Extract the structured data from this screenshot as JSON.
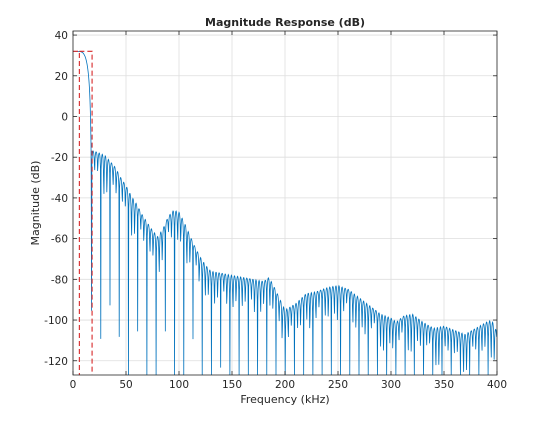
{
  "chart_data": {
    "type": "line",
    "title": "Magnitude Response (dB)",
    "xlabel": "Frequency (kHz)",
    "ylabel": "Magnitude (dB)",
    "xlim": [
      0,
      400
    ],
    "ylim": [
      -127,
      42
    ],
    "xticks": [
      0,
      50,
      100,
      150,
      200,
      250,
      300,
      350,
      400
    ],
    "yticks": [
      -120,
      -100,
      -80,
      -60,
      -40,
      -20,
      0,
      20,
      40
    ],
    "grid": true,
    "line_color": "#0072bd",
    "mask_color": "#d62728",
    "series": [
      {
        "type": "line",
        "passband_level_db": 32,
        "passband_edge_khz": 17,
        "stopband_envelope": [
          [
            17.5,
            -17
          ],
          [
            20,
            -17
          ],
          [
            25,
            -18
          ],
          [
            30,
            -19
          ],
          [
            35,
            -22
          ],
          [
            40,
            -25
          ],
          [
            45,
            -30
          ],
          [
            50,
            -34
          ],
          [
            55,
            -39
          ],
          [
            60,
            -43
          ],
          [
            65,
            -48
          ],
          [
            70,
            -52
          ],
          [
            75,
            -56
          ],
          [
            80,
            -59
          ],
          [
            85,
            -55
          ],
          [
            90,
            -49
          ],
          [
            95,
            -46
          ],
          [
            100,
            -47
          ],
          [
            105,
            -52
          ],
          [
            110,
            -58
          ],
          [
            115,
            -64
          ],
          [
            120,
            -69
          ],
          [
            125,
            -73
          ],
          [
            130,
            -76
          ],
          [
            140,
            -77
          ],
          [
            150,
            -78
          ],
          [
            160,
            -79
          ],
          [
            170,
            -80
          ],
          [
            180,
            -81
          ],
          [
            185,
            -79
          ],
          [
            190,
            -84
          ],
          [
            200,
            -95
          ],
          [
            210,
            -92
          ],
          [
            220,
            -87
          ],
          [
            230,
            -86
          ],
          [
            240,
            -84
          ],
          [
            250,
            -83
          ],
          [
            260,
            -85
          ],
          [
            270,
            -89
          ],
          [
            280,
            -93
          ],
          [
            290,
            -97
          ],
          [
            300,
            -99
          ],
          [
            305,
            -101
          ],
          [
            312,
            -98
          ],
          [
            320,
            -97
          ],
          [
            330,
            -101
          ],
          [
            340,
            -104
          ],
          [
            350,
            -103
          ],
          [
            360,
            -105
          ],
          [
            370,
            -107
          ],
          [
            380,
            -104
          ],
          [
            390,
            -101
          ],
          [
            395,
            -100
          ],
          [
            400,
            -106
          ]
        ],
        "null_spacing_khz": 2.9,
        "null_floor_db": -127
      }
    ],
    "mask": {
      "passband": {
        "start_khz": 0,
        "end_khz": 6,
        "level_db": 32
      },
      "transition": {
        "start_khz": 6,
        "end_khz": 18,
        "level_db": 32
      }
    }
  }
}
